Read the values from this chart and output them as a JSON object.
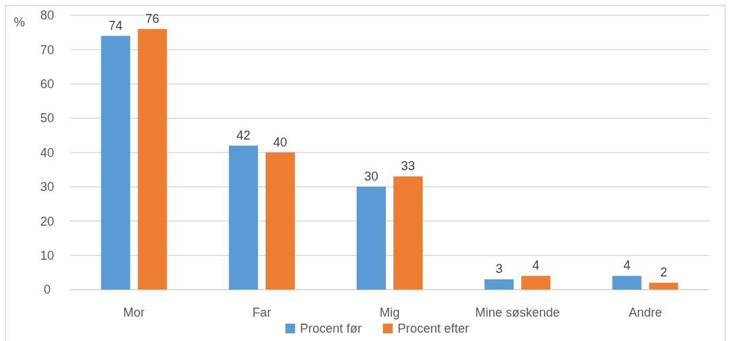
{
  "chart_data": {
    "type": "bar",
    "ylabel": "%",
    "categories": [
      "Mor",
      "Far",
      "Mig",
      "Mine søskende",
      "Andre"
    ],
    "series": [
      {
        "name": "Procent før",
        "color": "#5b9bd5",
        "values": [
          74,
          42,
          30,
          3,
          4
        ]
      },
      {
        "name": "Procent efter",
        "color": "#ed7d31",
        "values": [
          76,
          40,
          33,
          4,
          2
        ]
      }
    ],
    "ylim": [
      0,
      80
    ],
    "yticks": [
      0,
      10,
      20,
      30,
      40,
      50,
      60,
      70,
      80
    ],
    "grid": "y",
    "legend": "bottom",
    "data_labels": true
  }
}
